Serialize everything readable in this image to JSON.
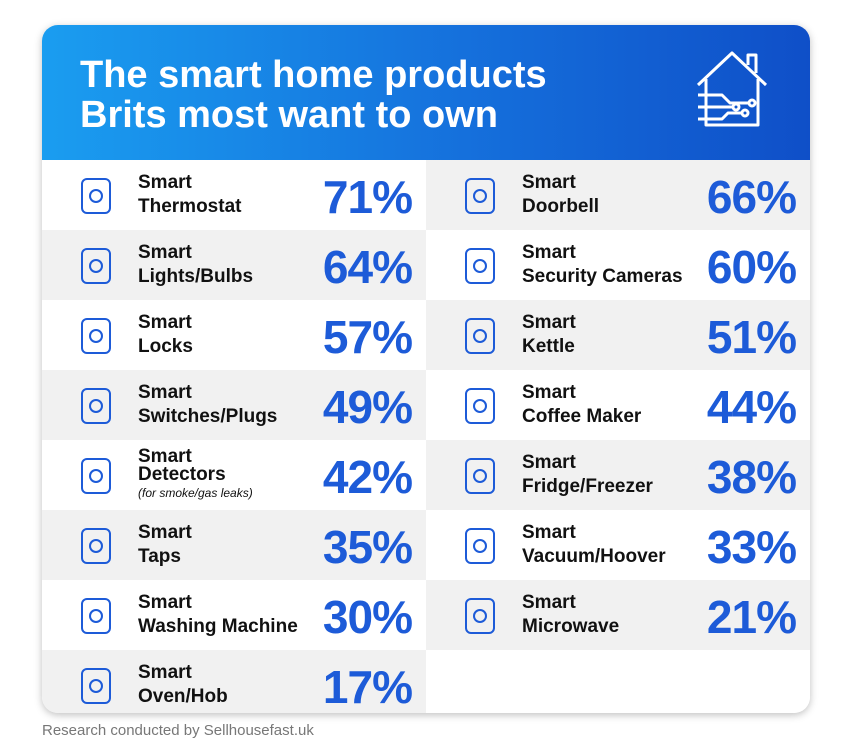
{
  "title": [
    "The smart home products",
    "Brits most want to own"
  ],
  "columns": [
    [
      {
        "lines": [
          "Smart",
          "Thermostat"
        ],
        "value": "71%"
      },
      {
        "lines": [
          "Smart",
          "Lights/Bulbs"
        ],
        "value": "64%"
      },
      {
        "lines": [
          "Smart",
          "Locks"
        ],
        "value": "57%"
      },
      {
        "lines": [
          "Smart",
          "Switches/Plugs"
        ],
        "value": "49%"
      },
      {
        "lines": [
          "Smart",
          "Detectors"
        ],
        "note": "(for smoke/gas leaks)",
        "value": "42%"
      },
      {
        "lines": [
          "Smart",
          "Taps"
        ],
        "value": "35%"
      },
      {
        "lines": [
          "Smart",
          "Washing Machine"
        ],
        "value": "30%"
      },
      {
        "lines": [
          "Smart",
          "Oven/Hob"
        ],
        "value": "17%"
      }
    ],
    [
      {
        "lines": [
          "Smart",
          "Doorbell"
        ],
        "value": "66%"
      },
      {
        "lines": [
          "Smart",
          "Security Cameras"
        ],
        "value": "60%"
      },
      {
        "lines": [
          "Smart",
          "Kettle"
        ],
        "value": "51%"
      },
      {
        "lines": [
          "Smart",
          "Coffee Maker"
        ],
        "value": "44%"
      },
      {
        "lines": [
          "Smart",
          "Fridge/Freezer"
        ],
        "value": "38%"
      },
      {
        "lines": [
          "Smart",
          "Vacuum/Hoover"
        ],
        "value": "33%"
      },
      {
        "lines": [
          "Smart",
          "Microwave"
        ],
        "value": "21%"
      }
    ]
  ],
  "footer": "Research conducted by Sellhousefast.uk"
}
